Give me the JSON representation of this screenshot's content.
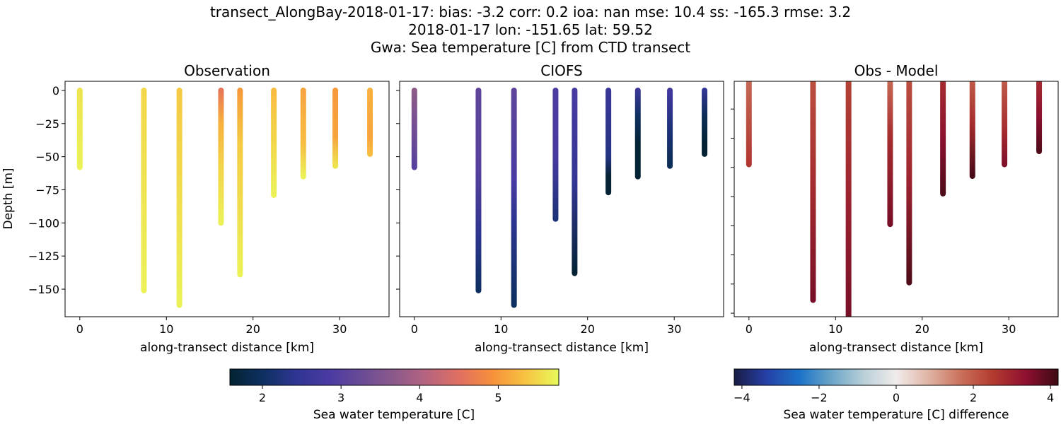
{
  "title_lines": [
    "transect_AlongBay-2018-01-17: bias: -3.2  corr: 0.2  ioa: nan  mse: 10.4  ss: -165.3  rmse: 3.2",
    "2018-01-17 lon: -151.65 lat: 59.52",
    "Gwa: Sea temperature [C] from CTD transect"
  ],
  "chart_data": [
    {
      "type": "scatter",
      "title": "Observation",
      "xlabel": "along-transect distance [km]",
      "ylabel": "Depth [m]",
      "xlim": [
        -1.7,
        35.7
      ],
      "ylim": [
        -170.8,
        6.9
      ],
      "xticks": [
        0,
        10,
        20,
        30
      ],
      "yticks": [
        0,
        -25,
        -50,
        -75,
        -100,
        -125,
        -150
      ],
      "ytick_labels": [
        "0",
        "−25",
        "−50",
        "−75",
        "−100",
        "−125",
        "−150"
      ],
      "show_ytick_labels": true,
      "colormap": "thermal",
      "casts": [
        {
          "x": 0,
          "bottom": -58,
          "profile": [
            [
              0,
              5.6
            ],
            [
              -58,
              5.7
            ]
          ]
        },
        {
          "x": 7.4,
          "bottom": -151,
          "profile": [
            [
              0,
              5.5
            ],
            [
              -151,
              5.7
            ]
          ]
        },
        {
          "x": 11.5,
          "bottom": -162,
          "profile": [
            [
              0,
              5.4
            ],
            [
              -162,
              5.7
            ]
          ]
        },
        {
          "x": 16.3,
          "bottom": -100,
          "profile": [
            [
              0,
              4.6
            ],
            [
              -25,
              5.2
            ],
            [
              -60,
              5.5
            ],
            [
              -100,
              5.7
            ]
          ]
        },
        {
          "x": 18.5,
          "bottom": -139,
          "profile": [
            [
              0,
              5.0
            ],
            [
              -40,
              5.4
            ],
            [
              -139,
              5.7
            ]
          ]
        },
        {
          "x": 22.4,
          "bottom": -79,
          "profile": [
            [
              0,
              5.3
            ],
            [
              -40,
              5.5
            ],
            [
              -79,
              5.7
            ]
          ]
        },
        {
          "x": 25.8,
          "bottom": -65,
          "profile": [
            [
              0,
              5.1
            ],
            [
              -40,
              5.3
            ],
            [
              -65,
              5.7
            ]
          ]
        },
        {
          "x": 29.5,
          "bottom": -57,
          "profile": [
            [
              0,
              5.0
            ],
            [
              -35,
              5.1
            ],
            [
              -57,
              5.6
            ]
          ]
        },
        {
          "x": 33.5,
          "bottom": -48,
          "profile": [
            [
              0,
              5.2
            ],
            [
              -35,
              5.1
            ],
            [
              -48,
              5.3
            ]
          ]
        }
      ]
    },
    {
      "type": "scatter",
      "title": "CIOFS",
      "xlabel": "along-transect distance [km]",
      "xlim": [
        -1.7,
        35.7
      ],
      "ylim": [
        -170.8,
        6.9
      ],
      "xticks": [
        0,
        10,
        20,
        30
      ],
      "yticks": [
        0,
        -25,
        -50,
        -75,
        -100,
        -125,
        -150
      ],
      "show_ytick_labels": false,
      "colormap": "thermal",
      "casts": [
        {
          "x": 0,
          "bottom": -58,
          "profile": [
            [
              0,
              3.7
            ],
            [
              -58,
              3.0
            ]
          ]
        },
        {
          "x": 7.4,
          "bottom": -151,
          "profile": [
            [
              0,
              3.1
            ],
            [
              -60,
              3.0
            ],
            [
              -110,
              2.4
            ],
            [
              -151,
              2.0
            ]
          ]
        },
        {
          "x": 11.5,
          "bottom": -162,
          "profile": [
            [
              0,
              3.1
            ],
            [
              -70,
              2.8
            ],
            [
              -100,
              2.4
            ],
            [
              -162,
              2.0
            ]
          ]
        },
        {
          "x": 16.3,
          "bottom": -97,
          "profile": [
            [
              0,
              2.9
            ],
            [
              -50,
              2.8
            ],
            [
              -97,
              2.2
            ]
          ]
        },
        {
          "x": 18.5,
          "bottom": -138,
          "profile": [
            [
              0,
              2.8
            ],
            [
              -70,
              2.5
            ],
            [
              -138,
              1.6
            ]
          ]
        },
        {
          "x": 22.4,
          "bottom": -77,
          "profile": [
            [
              0,
              2.6
            ],
            [
              -50,
              2.3
            ],
            [
              -65,
              1.6
            ],
            [
              -77,
              1.6
            ]
          ]
        },
        {
          "x": 25.8,
          "bottom": -65,
          "profile": [
            [
              0,
              2.6
            ],
            [
              -20,
              2.0
            ],
            [
              -40,
              1.6
            ],
            [
              -65,
              1.6
            ]
          ]
        },
        {
          "x": 29.5,
          "bottom": -57,
          "profile": [
            [
              0,
              2.7
            ],
            [
              -30,
              2.2
            ],
            [
              -57,
              1.9
            ]
          ]
        },
        {
          "x": 33.5,
          "bottom": -48,
          "profile": [
            [
              0,
              2.5
            ],
            [
              -20,
              1.9
            ],
            [
              -40,
              1.6
            ],
            [
              -48,
              1.6
            ]
          ]
        }
      ]
    },
    {
      "type": "scatter",
      "title": "Obs - Model",
      "xlabel": "along-transect distance [km]",
      "xlim": [
        -1.7,
        35.7
      ],
      "ylim": [
        -162.4,
        -1
      ],
      "xticks": [
        0,
        10,
        20,
        30
      ],
      "yticks": [
        -20,
        -40,
        -60,
        -80,
        -100,
        -120,
        -140,
        -160
      ],
      "show_ytick_labels": false,
      "colormap": "balance",
      "casts": [
        {
          "x": 0,
          "bottom": -58,
          "profile": [
            [
              0,
              1.8
            ],
            [
              -58,
              2.6
            ]
          ]
        },
        {
          "x": 7.4,
          "bottom": -151,
          "profile": [
            [
              0,
              2.2
            ],
            [
              -70,
              2.8
            ],
            [
              -151,
              3.6
            ]
          ]
        },
        {
          "x": 11.5,
          "bottom": -165,
          "profile": [
            [
              0,
              2.4
            ],
            [
              -80,
              3.0
            ],
            [
              -165,
              3.6
            ]
          ]
        },
        {
          "x": 16.3,
          "bottom": -99,
          "profile": [
            [
              0,
              1.8
            ],
            [
              -40,
              2.8
            ],
            [
              -99,
              3.6
            ]
          ]
        },
        {
          "x": 18.5,
          "bottom": -139,
          "profile": [
            [
              0,
              2.2
            ],
            [
              -70,
              3.0
            ],
            [
              -139,
              4.0
            ]
          ]
        },
        {
          "x": 22.4,
          "bottom": -78,
          "profile": [
            [
              0,
              2.8
            ],
            [
              -40,
              3.4
            ],
            [
              -78,
              4.0
            ]
          ]
        },
        {
          "x": 25.8,
          "bottom": -66,
          "profile": [
            [
              0,
              2.0
            ],
            [
              -30,
              2.8
            ],
            [
              -66,
              4.1
            ]
          ]
        },
        {
          "x": 29.5,
          "bottom": -58,
          "profile": [
            [
              0,
              2.0
            ],
            [
              -35,
              2.8
            ],
            [
              -58,
              3.5
            ]
          ]
        },
        {
          "x": 33.5,
          "bottom": -49,
          "profile": [
            [
              0,
              2.8
            ],
            [
              -25,
              3.4
            ],
            [
              -49,
              4.0
            ]
          ]
        }
      ]
    }
  ],
  "colorbars": [
    {
      "label": "Sea water temperature [C]",
      "colormap": "thermal",
      "range": [
        1.586,
        5.77
      ],
      "ticks": [
        2,
        3,
        4,
        5
      ],
      "tick_labels": [
        "2",
        "3",
        "4",
        "5"
      ]
    },
    {
      "label": "Sea water temperature [C] difference",
      "colormap": "balance",
      "range": [
        -4.2,
        4.2
      ],
      "ticks": [
        -4,
        -2,
        0,
        2,
        4
      ],
      "tick_labels": [
        "−4",
        "−2",
        "0",
        "2",
        "4"
      ]
    }
  ],
  "colormaps": {
    "thermal": [
      "#042333",
      "#0d3060",
      "#2e3592",
      "#4a3aa2",
      "#6a4b96",
      "#8c5a8a",
      "#b7647f",
      "#e17060",
      "#f6913a",
      "#f7c341",
      "#e8fa5b"
    ],
    "balance": [
      "#181c43",
      "#2640a8",
      "#1b72c8",
      "#6aa5c8",
      "#b9d0d8",
      "#f1ecec",
      "#dfb4a4",
      "#c9705a",
      "#b23a2e",
      "#8e1030",
      "#3c0912"
    ]
  }
}
